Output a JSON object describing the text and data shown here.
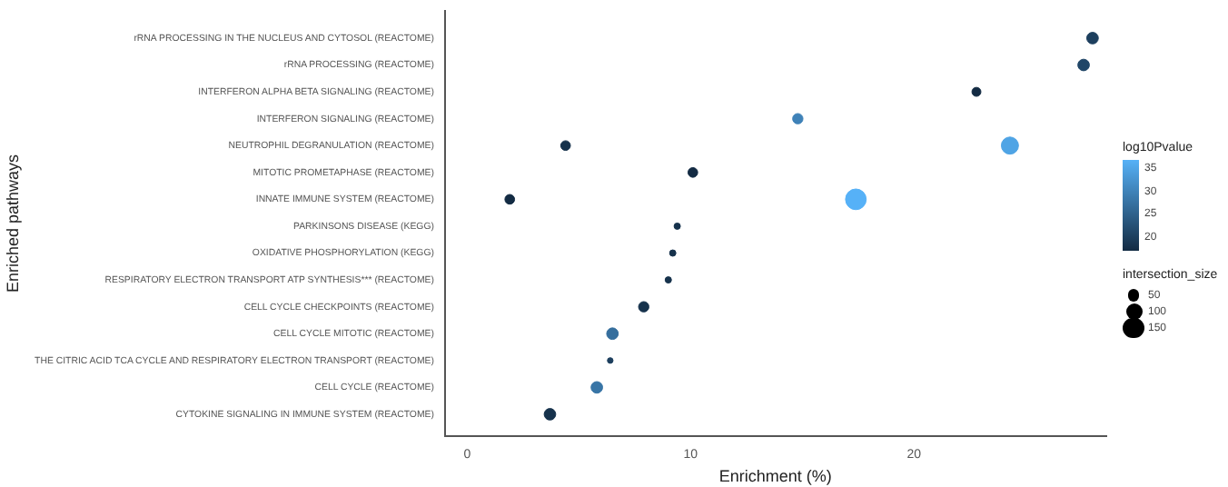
{
  "chart_data": {
    "type": "bubble",
    "orientation": "horizontal",
    "xlabel": "Enrichment (%)",
    "ylabel": "Enriched pathways",
    "clabel": "log10Pvalue",
    "legend_title": "intersection_size",
    "categories": [
      "rRNA PROCESSING IN THE NUCLEUS AND CYTOSOL (REACTOME)",
      "rRNA PROCESSING (REACTOME)",
      "INTERFERON ALPHA BETA SIGNALING (REACTOME)",
      "INTERFERON SIGNALING (REACTOME)",
      "NEUTROPHIL DEGRANULATION (REACTOME)",
      "MITOTIC PROMETAPHASE (REACTOME)",
      "INNATE IMMUNE SYSTEM (REACTOME)",
      "PARKINSONS DISEASE (KEGG)",
      "OXIDATIVE PHOSPHORYLATION (KEGG)",
      "RESPIRATORY ELECTRON TRANSPORT ATP SYNTHESIS*** (REACTOME)",
      "CELL CYCLE CHECKPOINTS (REACTOME)",
      "CELL CYCLE MITOTIC (REACTOME)",
      "THE CITRIC ACID TCA CYCLE AND RESPIRATORY ELECTRON TRANSPORT (REACTOME)",
      "CELL CYCLE (REACTOME)",
      "CYTOKINE SIGNALING IN IMMUNE SYSTEM (REACTOME)"
    ],
    "series": [
      {
        "values": [
          28.0,
          27.6,
          22.8,
          14.8,
          4.4,
          10.1,
          1.9,
          9.4,
          9.2,
          9.0,
          7.9,
          6.5,
          6.4,
          5.8,
          3.7
        ],
        "sizes": [
          50,
          50,
          30,
          40,
          35,
          35,
          35,
          15,
          15,
          15,
          40,
          50,
          12,
          50,
          50
        ],
        "cvalues": [
          20,
          21,
          17,
          30,
          18,
          17,
          17,
          18,
          18,
          18,
          18,
          27,
          20,
          28,
          18
        ],
        "colors": [
          "#1d3f5e",
          "#204667",
          "#132b43",
          "#3f82b8",
          "#16324c",
          "#132b43",
          "#132b43",
          "#16324c",
          "#16324c",
          "#16324c",
          "#16324c",
          "#356e9d",
          "#1d3f5e",
          "#3875a6",
          "#16324c"
        ]
      },
      {
        "values": [
          null,
          null,
          null,
          null,
          24.3,
          null,
          17.4,
          null,
          null,
          null,
          null,
          null,
          null,
          null,
          null
        ],
        "sizes": [
          null,
          null,
          null,
          null,
          110,
          null,
          160,
          null,
          null,
          null,
          null,
          null,
          null,
          null,
          null
        ],
        "cvalues": [
          null,
          null,
          null,
          null,
          35,
          null,
          37,
          null,
          null,
          null,
          null,
          null,
          null,
          null,
          null
        ],
        "colors": [
          null,
          null,
          null,
          null,
          "#4fa4e5",
          null,
          "#56b1f7",
          null,
          null,
          null,
          null,
          null,
          null,
          null,
          null
        ]
      }
    ],
    "xlim": [
      -1,
      28.6
    ],
    "xticks": [
      0,
      10,
      20
    ],
    "clim": [
      17,
      37
    ],
    "cticks": [
      20,
      25,
      30,
      35
    ],
    "size_legend": [
      50,
      100,
      150
    ]
  }
}
